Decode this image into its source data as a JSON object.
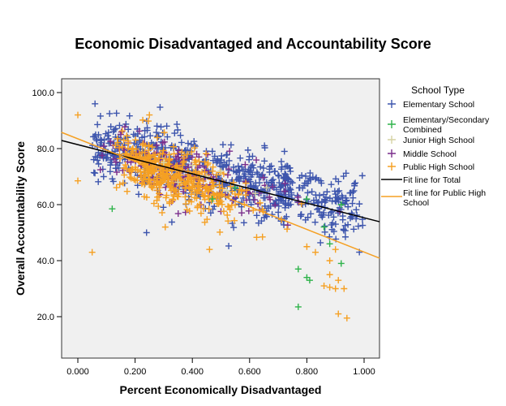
{
  "chart_data": {
    "type": "scatter",
    "title": "Economic Disadvantaged and Accountability Score",
    "xlabel": "Percent Economically Disadvantaged",
    "ylabel": "Overall Accountability Score",
    "xlim": [
      -0.057,
      1.054
    ],
    "ylim": [
      4.9,
      104.9
    ],
    "x_ticks": [
      "0.000",
      "0.200",
      "0.400",
      "0.600",
      "0.800",
      "1.000"
    ],
    "x_tick_values": [
      0,
      0.2,
      0.4,
      0.6,
      0.8,
      1.0
    ],
    "y_ticks": [
      "20.0",
      "40.0",
      "60.0",
      "80.0",
      "100.0"
    ],
    "y_tick_values": [
      20,
      40,
      60,
      80,
      100
    ],
    "grid": false,
    "legend_title": "School Type",
    "legend_position": "right",
    "series": [
      {
        "name": "Elementary School",
        "color": "#3d55ad",
        "center_slope": -24,
        "center_intercept": 82,
        "spread": 6,
        "count": 700,
        "x_range": [
          0.0,
          1.0
        ],
        "outliers": [
          [
            0.06,
            96
          ],
          [
            0.24,
            50
          ],
          [
            0.09,
            70
          ]
        ]
      },
      {
        "name": "Elementary/Secondary Combined",
        "color": "#2eb34a",
        "count": 12,
        "points": [
          [
            0.12,
            58.5
          ],
          [
            0.77,
            37
          ],
          [
            0.8,
            34
          ],
          [
            0.81,
            33
          ],
          [
            0.77,
            23.5
          ],
          [
            0.92,
            39
          ],
          [
            0.88,
            46
          ],
          [
            0.86,
            52
          ],
          [
            0.92,
            60
          ],
          [
            0.8,
            62
          ],
          [
            0.55,
            66
          ],
          [
            0.47,
            62
          ]
        ]
      },
      {
        "name": "Junior High School",
        "color": "#d6d3a4",
        "count": 8,
        "points": [
          [
            0.3,
            75
          ],
          [
            0.35,
            68
          ],
          [
            0.45,
            70
          ],
          [
            0.5,
            72
          ],
          [
            0.62,
            64
          ],
          [
            0.66,
            66
          ],
          [
            0.4,
            74
          ],
          [
            0.52,
            65
          ]
        ]
      },
      {
        "name": "Middle School",
        "color": "#7a2e8c",
        "center_slope": -24,
        "center_intercept": 80,
        "spread": 5,
        "count": 170,
        "x_range": [
          0.0,
          1.0
        ]
      },
      {
        "name": "Public High School",
        "color": "#f5a023",
        "center_slope": -40,
        "center_intercept": 83,
        "spread": 5,
        "count": 420,
        "x_range": [
          0.0,
          1.0
        ],
        "outliers": [
          [
            0.0,
            92
          ],
          [
            0.05,
            43
          ],
          [
            0.0,
            68.5
          ],
          [
            0.46,
            44
          ],
          [
            0.9,
            30
          ],
          [
            0.91,
            21
          ],
          [
            0.94,
            19.5
          ],
          [
            0.88,
            30.5
          ],
          [
            0.86,
            31
          ],
          [
            0.88,
            35
          ],
          [
            0.91,
            33
          ],
          [
            0.93,
            30
          ],
          [
            0.8,
            45
          ],
          [
            0.83,
            43
          ],
          [
            0.88,
            40
          ],
          [
            0.9,
            44
          ],
          [
            0.25,
            92
          ]
        ]
      }
    ],
    "fit_lines": [
      {
        "name": "Fit line for Total",
        "color": "#000000",
        "x": [
          -0.057,
          1.054
        ],
        "y": [
          82.9,
          53.9
        ]
      },
      {
        "name": "Fit line for Public High School",
        "color": "#f5a023",
        "x": [
          -0.057,
          1.054
        ],
        "y": [
          85.8,
          40.9
        ]
      }
    ],
    "legend_entries": [
      "Elementary School",
      "Elementary/Secondary",
      "Combined",
      "Junior High School",
      "Middle School",
      "Public High School",
      "Fit line for Total",
      "Fit line for Public High",
      "School"
    ]
  }
}
